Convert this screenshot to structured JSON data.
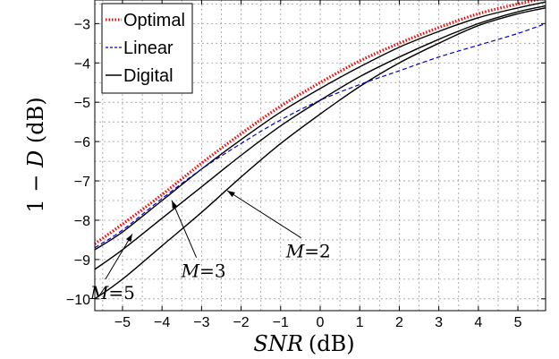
{
  "chart_data": {
    "type": "line",
    "title": "",
    "xlabel_var": "SNR",
    "xlabel_unit": "(dB)",
    "ylabel_prefix": "1 − ",
    "ylabel_var": "D",
    "ylabel_unit": " (dB)",
    "xlim": [
      -5.7,
      5.7
    ],
    "ylim": [
      -10.3,
      -2.4
    ],
    "xticks": [
      -5,
      -4,
      -3,
      -2,
      -1,
      0,
      1,
      2,
      3,
      4,
      5
    ],
    "yticks": [
      -10,
      -9,
      -8,
      -7,
      -6,
      -5,
      -4,
      -3
    ],
    "xtick_labels": [
      "−5",
      "−4",
      "−3",
      "−2",
      "−1",
      "0",
      "1",
      "2",
      "3",
      "4",
      "5"
    ],
    "ytick_labels": [
      "−10",
      "−9",
      "−8",
      "−7",
      "−6",
      "−5",
      "−4",
      "−3"
    ],
    "grid": true,
    "legend_position": "top-left",
    "legend": [
      {
        "label": "Optimal",
        "style": "dotted",
        "color": "#ff0000"
      },
      {
        "label": "Linear",
        "style": "dashed",
        "color": "#0000cc"
      },
      {
        "label": "Digital",
        "style": "solid",
        "color": "#000000"
      }
    ],
    "x": [
      -5.7,
      -5,
      -4,
      -3,
      -2,
      -1,
      0,
      1,
      2,
      3,
      4,
      5,
      5.7
    ],
    "series": [
      {
        "name": "Optimal",
        "style": "dotted",
        "color": "#ff0000",
        "values": [
          -8.6,
          -8.1,
          -7.35,
          -6.55,
          -5.8,
          -5.1,
          -4.5,
          -3.95,
          -3.5,
          -3.1,
          -2.75,
          -2.5,
          -2.35
        ]
      },
      {
        "name": "Linear",
        "style": "dashed",
        "color": "#0000cc",
        "values": [
          -8.7,
          -8.25,
          -7.45,
          -6.7,
          -6.05,
          -5.45,
          -4.95,
          -4.55,
          -4.2,
          -3.85,
          -3.55,
          -3.25,
          -3.0
        ]
      },
      {
        "label_key": "m5",
        "style": "solid",
        "color": "#000000",
        "values": [
          -8.75,
          -8.3,
          -7.5,
          -6.7,
          -5.95,
          -5.25,
          -4.65,
          -4.1,
          -3.6,
          -3.2,
          -2.85,
          -2.6,
          -2.45
        ]
      },
      {
        "label_key": "m3",
        "style": "solid",
        "color": "#000000",
        "values": [
          -9.25,
          -8.75,
          -7.95,
          -7.15,
          -6.35,
          -5.6,
          -4.95,
          -4.35,
          -3.85,
          -3.4,
          -3.0,
          -2.7,
          -2.55
        ]
      },
      {
        "label_key": "m2",
        "style": "solid",
        "color": "#000000",
        "values": [
          -10.0,
          -9.5,
          -8.65,
          -7.8,
          -6.9,
          -6.05,
          -5.3,
          -4.6,
          -4.0,
          -3.5,
          -3.05,
          -2.75,
          -2.6
        ]
      }
    ],
    "annotations": [
      {
        "key": "m2",
        "var": "M",
        "eq": "=2",
        "target": [
          -2.35,
          -7.25
        ],
        "text_at": [
          -0.3,
          -8.95
        ]
      },
      {
        "key": "m3",
        "var": "M",
        "eq": "=3",
        "target": [
          -3.75,
          -7.5
        ],
        "text_at": [
          -2.95,
          -9.45
        ]
      },
      {
        "key": "m5",
        "var": "M",
        "eq": "=5",
        "target": [
          -4.75,
          -8.35
        ],
        "text_at": [
          -5.25,
          -10.0
        ]
      }
    ]
  }
}
